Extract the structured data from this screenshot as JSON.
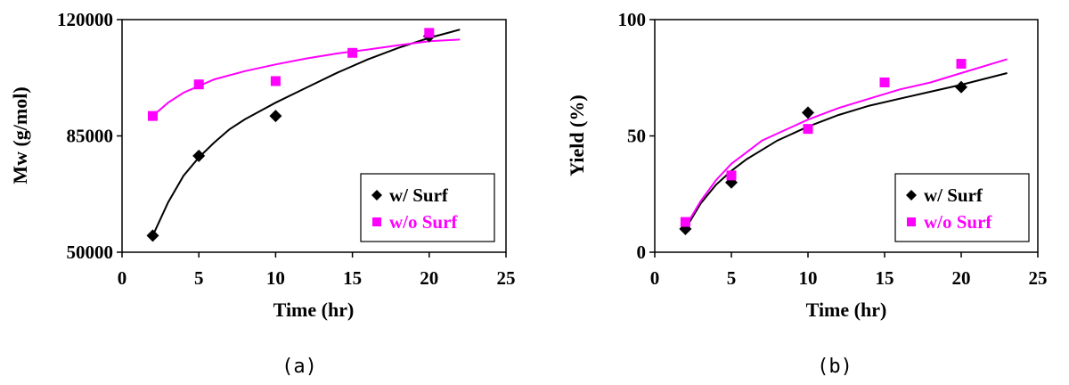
{
  "colors": {
    "with_surf": "#000000",
    "without_surf": "#ff00ff"
  },
  "chart_data": [
    {
      "type": "scatter",
      "caption": "(a)",
      "xlabel": "Time (hr)",
      "ylabel": "Mw (g/mol)",
      "xlim": [
        0,
        25
      ],
      "ylim": [
        50000,
        120000
      ],
      "xticks": [
        0,
        5,
        10,
        15,
        20,
        25
      ],
      "yticks": [
        50000,
        85000,
        120000
      ],
      "x_tick_labels": [
        "0",
        "5",
        "10",
        "15",
        "20",
        "25"
      ],
      "y_tick_labels": [
        "50000",
        "85000",
        "120000"
      ],
      "grid": false,
      "legend_position": "bottom-right",
      "series": [
        {
          "name": "w/ Surf",
          "marker": "diamond",
          "color": "#000000",
          "x": [
            2,
            5,
            10,
            20
          ],
          "y": [
            55000,
            79000,
            91000,
            115000
          ],
          "fit_curve": {
            "x": [
              2,
              3,
              4,
              5,
              6,
              7,
              8,
              9,
              10,
              12,
              14,
              16,
              18,
              20,
              22
            ],
            "y": [
              55000,
              65000,
              73000,
              78500,
              83000,
              87000,
              90000,
              92500,
              95000,
              99500,
              104000,
              108000,
              111500,
              114500,
              117000
            ]
          }
        },
        {
          "name": "w/o Surf",
          "marker": "square",
          "color": "#ff00ff",
          "x": [
            2,
            5,
            10,
            15,
            20
          ],
          "y": [
            91000,
            100500,
            101500,
            110000,
            116000
          ],
          "fit_curve": {
            "x": [
              2,
              3,
              4,
              5,
              6,
              8,
              10,
              12,
              14,
              16,
              18,
              20,
              22
            ],
            "y": [
              91000,
              95000,
              98000,
              100000,
              102000,
              104500,
              106500,
              108300,
              109800,
              111000,
              112300,
              113500,
              114000
            ]
          }
        }
      ]
    },
    {
      "type": "scatter",
      "caption": "(b)",
      "xlabel": "Time (hr)",
      "ylabel": "Yield (%)",
      "xlim": [
        0,
        25
      ],
      "ylim": [
        0,
        100
      ],
      "xticks": [
        0,
        5,
        10,
        15,
        20,
        25
      ],
      "yticks": [
        0,
        50,
        100
      ],
      "x_tick_labels": [
        "0",
        "5",
        "10",
        "15",
        "20",
        "25"
      ],
      "y_tick_labels": [
        "0",
        "50",
        "100"
      ],
      "grid": false,
      "legend_position": "bottom-right",
      "series": [
        {
          "name": "w/ Surf",
          "marker": "diamond",
          "color": "#000000",
          "x": [
            2,
            5,
            10,
            20
          ],
          "y": [
            10,
            30,
            60,
            71
          ],
          "fit_curve": {
            "x": [
              2,
              3,
              4,
              5,
              6,
              7,
              8,
              10,
              12,
              14,
              16,
              18,
              20,
              23
            ],
            "y": [
              10,
              21,
              29,
              35,
              40,
              44,
              48,
              54,
              59,
              63,
              66,
              69,
              72,
              77
            ]
          }
        },
        {
          "name": "w/o Surf",
          "marker": "square",
          "color": "#ff00ff",
          "x": [
            2,
            5,
            10,
            15,
            20
          ],
          "y": [
            13,
            33,
            53,
            73,
            81
          ],
          "fit_curve": {
            "x": [
              2,
              3,
              4,
              5,
              6,
              7,
              8,
              10,
              12,
              14,
              16,
              18,
              20,
              23
            ],
            "y": [
              11,
              22,
              31,
              38,
              43,
              48,
              51,
              57,
              62,
              66,
              70,
              73,
              77,
              83
            ]
          }
        }
      ]
    }
  ]
}
